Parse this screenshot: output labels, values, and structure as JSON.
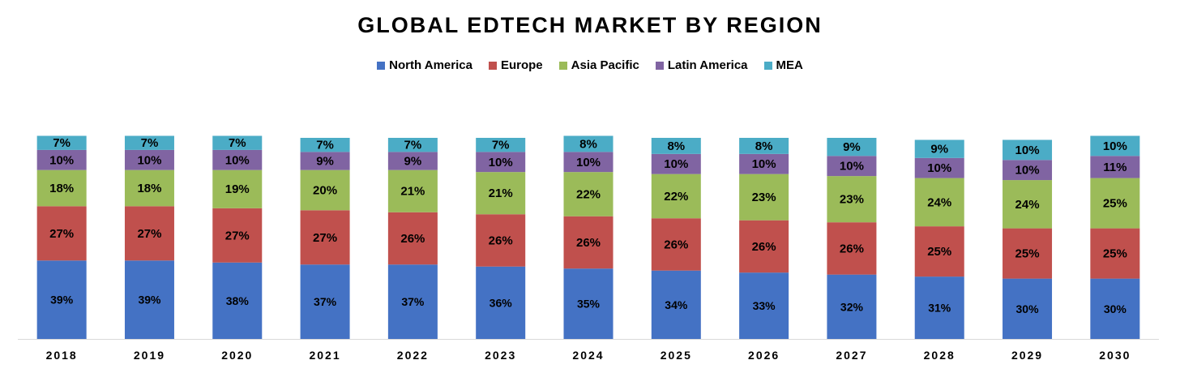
{
  "chart_data": {
    "type": "bar",
    "stacked": true,
    "percent_stacked": true,
    "title": "GLOBAL EDTECH MARKET BY REGION",
    "xlabel": "",
    "ylabel": "",
    "ylim": [
      0,
      100
    ],
    "grid": false,
    "legend_position": "top",
    "categories": [
      "2018",
      "2019",
      "2020",
      "2021",
      "2022",
      "2023",
      "2024",
      "2025",
      "2026",
      "2027",
      "2028",
      "2029",
      "2030"
    ],
    "series": [
      {
        "name": "North America",
        "color": "#4472C4",
        "values": [
          39,
          39,
          38,
          37,
          37,
          36,
          35,
          34,
          33,
          32,
          31,
          30,
          30
        ]
      },
      {
        "name": "Europe",
        "color": "#C0504D",
        "values": [
          27,
          27,
          27,
          27,
          26,
          26,
          26,
          26,
          26,
          26,
          25,
          25,
          25
        ]
      },
      {
        "name": "Asia Pacific",
        "color": "#9BBB59",
        "values": [
          18,
          18,
          19,
          20,
          21,
          21,
          22,
          22,
          23,
          23,
          24,
          24,
          25
        ]
      },
      {
        "name": "Latin America",
        "color": "#8064A2",
        "values": [
          10,
          10,
          10,
          9,
          9,
          10,
          10,
          10,
          10,
          10,
          10,
          10,
          11
        ]
      },
      {
        "name": "MEA",
        "color": "#4BACC6",
        "values": [
          7,
          7,
          7,
          7,
          7,
          7,
          8,
          8,
          8,
          9,
          9,
          10,
          10
        ]
      }
    ]
  }
}
